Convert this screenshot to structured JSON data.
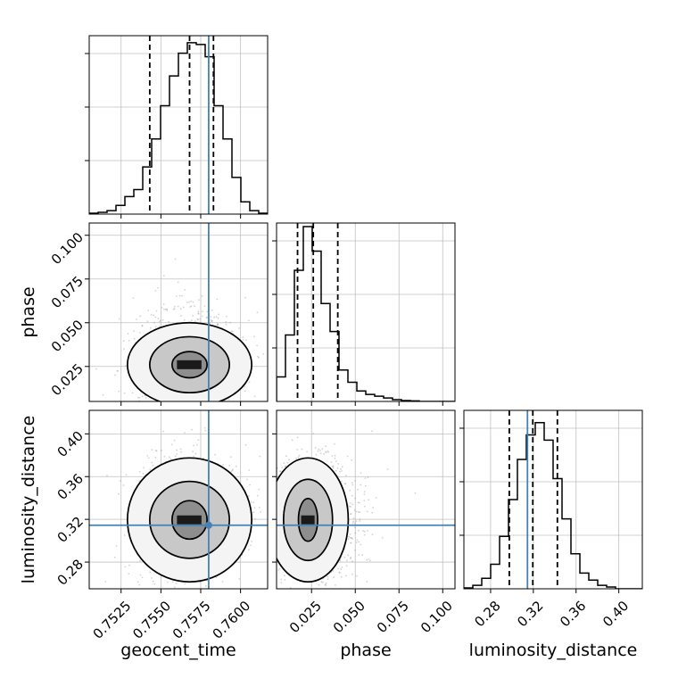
{
  "chart_data": {
    "type": "corner",
    "parameters": [
      "geocent_time",
      "phase",
      "luminosity_distance"
    ],
    "colors": {
      "truth": "#4682b4",
      "hist": "#000000",
      "grid": "#c0c0c0",
      "quantile": "#000000"
    },
    "grid": true,
    "ranges": {
      "geocent_time": [
        0.7505,
        0.7617
      ],
      "phase": [
        0.005,
        0.107
      ],
      "luminosity_distance": [
        0.255,
        0.422
      ]
    },
    "ticks": {
      "geocent_time": {
        "values": [
          0.7525,
          0.755,
          0.7575,
          0.76
        ],
        "labels": [
          "0.7525",
          "0.7550",
          "0.7575",
          "0.7600"
        ]
      },
      "phase": {
        "values": [
          0.025,
          0.05,
          0.075,
          0.1
        ],
        "labels": [
          "0.025",
          "0.050",
          "0.075",
          "0.100"
        ]
      },
      "luminosity_distance": {
        "values": [
          0.28,
          0.32,
          0.36,
          0.4
        ],
        "labels": [
          "0.28",
          "0.32",
          "0.36",
          "0.40"
        ]
      }
    },
    "truths": {
      "geocent_time": 0.758,
      "phase": null,
      "luminosity_distance": 0.3145
    },
    "quantiles": {
      "geocent_time": [
        0.7543,
        0.7568,
        0.7583
      ],
      "phase": [
        0.017,
        0.026,
        0.04
      ],
      "luminosity_distance": [
        0.2975,
        0.3195,
        0.3425
      ]
    },
    "histograms": {
      "geocent_time": {
        "edges": [
          0.7505,
          0.75106,
          0.75162,
          0.75218,
          0.75274,
          0.7533,
          0.75386,
          0.75442,
          0.75498,
          0.75554,
          0.7561,
          0.75666,
          0.75722,
          0.75778,
          0.75834,
          0.7589,
          0.75946,
          0.76002,
          0.76058,
          0.76114,
          0.7617
        ],
        "counts": [
          0.005,
          0.01,
          0.02,
          0.05,
          0.1,
          0.14,
          0.27,
          0.43,
          0.62,
          0.79,
          0.92,
          0.98,
          0.97,
          0.9,
          0.62,
          0.43,
          0.21,
          0.07,
          0.02,
          0.005
        ]
      },
      "phase": {
        "edges": [
          0.005,
          0.0101,
          0.0152,
          0.0203,
          0.0254,
          0.0305,
          0.0356,
          0.0407,
          0.0458,
          0.0509,
          0.056,
          0.0611,
          0.0662,
          0.0713,
          0.0764,
          0.0815,
          0.0866,
          0.0917,
          0.0968,
          0.1019,
          0.107
        ],
        "counts": [
          0.14,
          0.38,
          0.75,
          1.0,
          0.86,
          0.56,
          0.4,
          0.18,
          0.11,
          0.06,
          0.04,
          0.03,
          0.02,
          0.01,
          0.005,
          0.003,
          0.0,
          0.0,
          0.0,
          0.0
        ]
      },
      "luminosity_distance": {
        "edges": [
          0.255,
          0.26335,
          0.2717,
          0.28005,
          0.2884,
          0.29675,
          0.3051,
          0.31345,
          0.3218,
          0.33015,
          0.3385,
          0.34685,
          0.3552,
          0.36355,
          0.3719,
          0.38025,
          0.3886,
          0.39695,
          0.4053,
          0.41365,
          0.422
        ],
        "counts": [
          0.005,
          0.02,
          0.06,
          0.14,
          0.3,
          0.51,
          0.74,
          0.88,
          0.95,
          0.85,
          0.63,
          0.4,
          0.2,
          0.09,
          0.05,
          0.02,
          0.01,
          0.0,
          0.0,
          0.0
        ]
      }
    },
    "pairs": [
      {
        "x": "geocent_time",
        "y": "phase",
        "center": [
          0.7568,
          0.026
        ],
        "sigma": [
          0.0012,
          0.012
        ],
        "contours": [
          {
            "rx": 0.0011,
            "ry": 0.0075
          },
          {
            "rx": 0.0025,
            "ry": 0.016
          },
          {
            "rx": 0.0039,
            "ry": 0.024
          }
        ]
      },
      {
        "x": "geocent_time",
        "y": "luminosity_distance",
        "center": [
          0.7568,
          0.3195
        ],
        "sigma": [
          0.0012,
          0.022
        ],
        "contours": [
          {
            "rx": 0.0011,
            "ry": 0.018
          },
          {
            "rx": 0.0025,
            "ry": 0.036
          },
          {
            "rx": 0.0039,
            "ry": 0.058
          }
        ]
      },
      {
        "x": "phase",
        "y": "luminosity_distance",
        "center": [
          0.023,
          0.3195
        ],
        "sigma": [
          0.011,
          0.022
        ],
        "contours": [
          {
            "rx": 0.0055,
            "ry": 0.02
          },
          {
            "rx": 0.014,
            "ry": 0.038
          },
          {
            "rx": 0.023,
            "ry": 0.058
          }
        ]
      }
    ]
  }
}
